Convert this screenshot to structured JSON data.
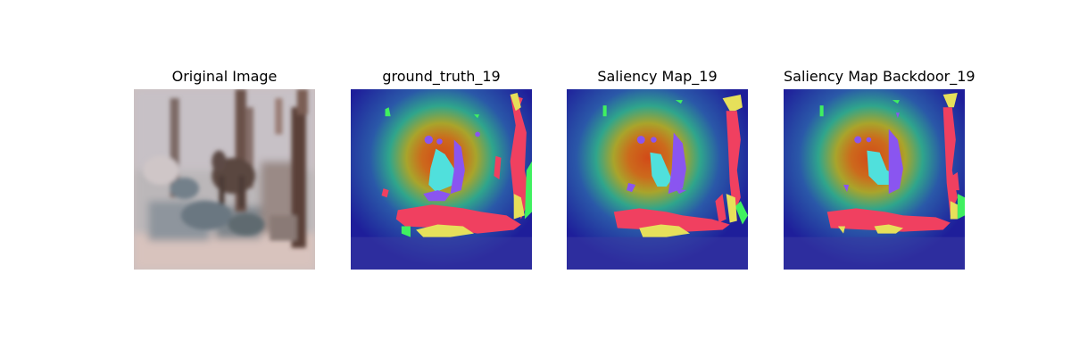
{
  "panels": [
    {
      "title": "Original Image",
      "kind": "photo"
    },
    {
      "title": "ground_truth_19",
      "kind": "heatmap-overlay"
    },
    {
      "title": "Saliency Map_19",
      "kind": "heatmap-overlay"
    },
    {
      "title": "Saliency Map Backdoor_19",
      "kind": "heatmap-overlay"
    }
  ],
  "colors": {
    "background": "#ffffff",
    "heatmap_low": "#1e1e9a",
    "heatmap_mid": "#2fa58c",
    "heatmap_high": "#d24a18",
    "segment_red": "#f04060",
    "segment_cyan": "#50e0dc",
    "segment_violet": "#8a55f0",
    "segment_yellow": "#e6e05a",
    "segment_green": "#40f060"
  }
}
